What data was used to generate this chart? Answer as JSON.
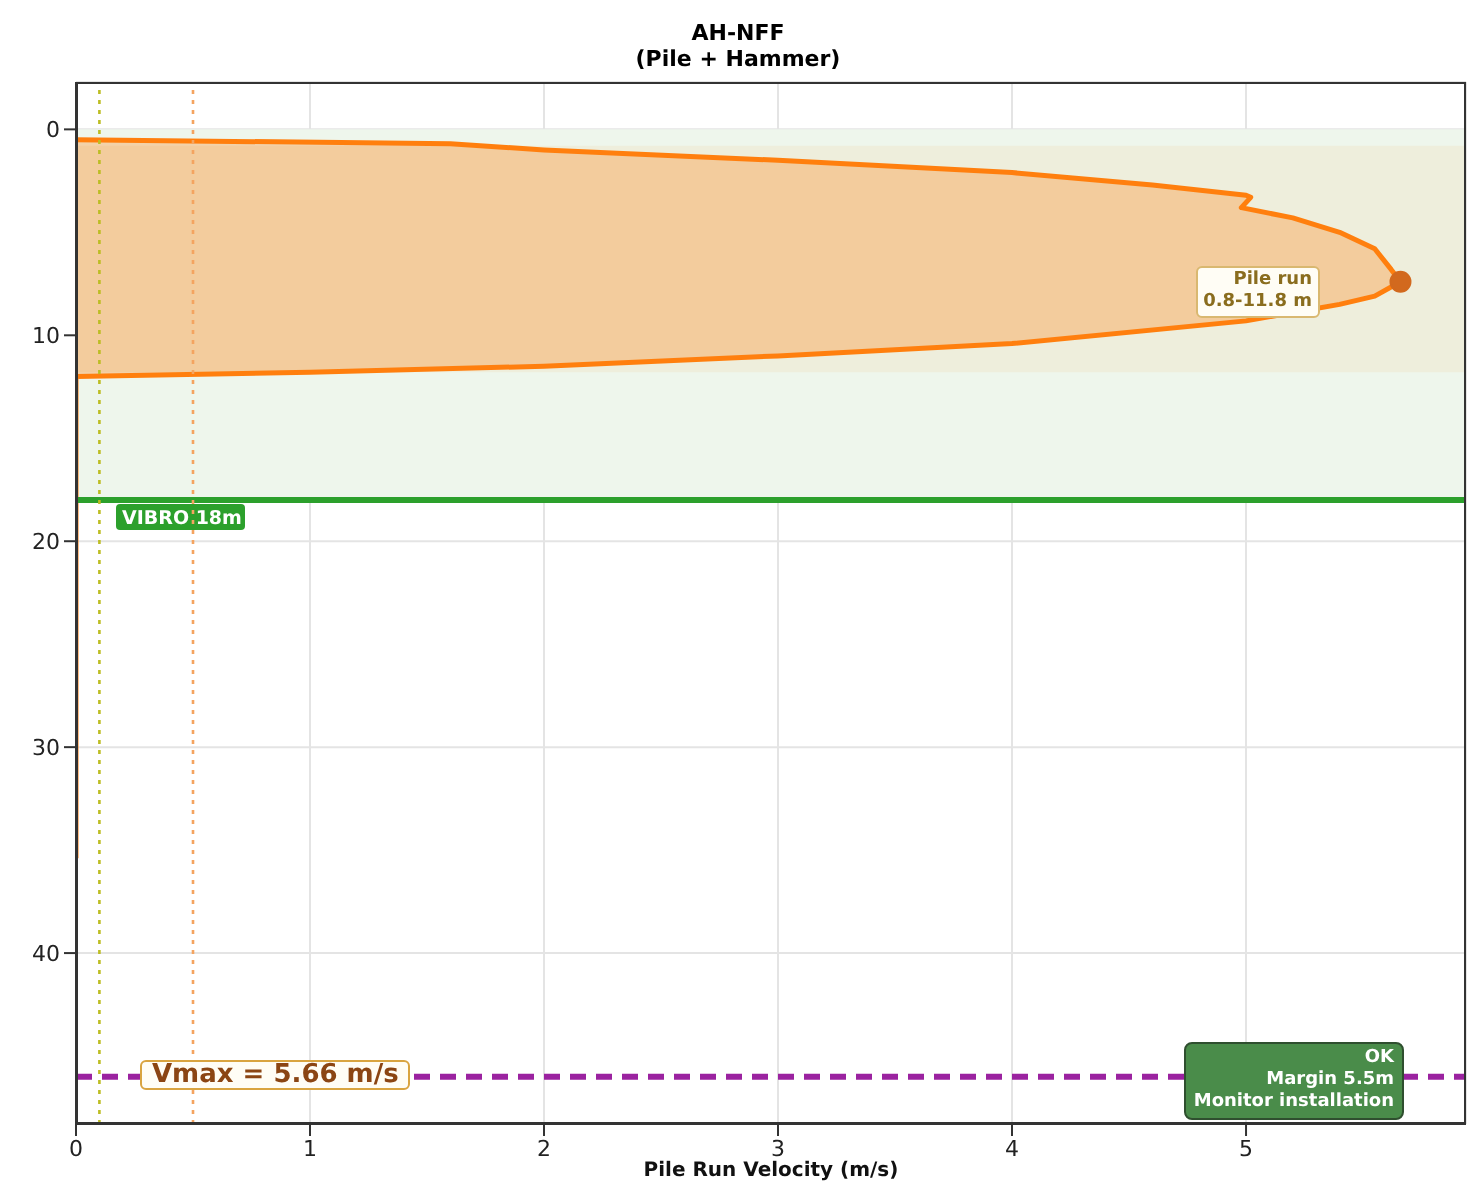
{
  "chart_data": {
    "type": "area",
    "title": "AH-NFF",
    "subtitle": "(Pile + Hammer)",
    "xlabel": "Pile Run Velocity (m/s)",
    "xlim": [
      0,
      5.94
    ],
    "xticks": [
      0,
      1,
      2,
      3,
      4,
      5
    ],
    "ylim": [
      48.3,
      -2.3
    ],
    "yticks": [
      0,
      10,
      20,
      30,
      40
    ],
    "grid": true,
    "series": [
      {
        "color": "#ff7f0e",
        "x": [
          0,
          1.6,
          2.0,
          3.0,
          4.0,
          4.6,
          5.0,
          5.02,
          4.98,
          5.2,
          5.4,
          5.55,
          5.62,
          5.66,
          5.55,
          5.4,
          5.0,
          4.0,
          3.0,
          2.0,
          1.0,
          0,
          0
        ],
        "values": [
          0.5,
          0.7,
          1.0,
          1.5,
          2.1,
          2.7,
          3.2,
          3.3,
          3.8,
          4.3,
          5.0,
          5.8,
          6.8,
          7.4,
          8.1,
          8.5,
          9.3,
          10.4,
          11.0,
          11.5,
          11.8,
          12.0,
          35.4
        ]
      },
      {
        "type": "scatter",
        "color": "#d2691e",
        "x": [
          5.66
        ],
        "values": [
          7.4
        ]
      }
    ],
    "bands": [
      {
        "axis": "y",
        "from": 0,
        "to": 18,
        "color": "#eef6ec"
      },
      {
        "axis": "y",
        "from": 0.8,
        "to": 11.8,
        "color": "#eeeedc"
      }
    ],
    "ref_lines": [
      {
        "axis": "y",
        "value": 18,
        "label": "VIBRO 18m",
        "color": "#2ca02c",
        "line_style": "solid"
      },
      {
        "axis": "y",
        "value": 46,
        "color": "#9b22a0",
        "line_style": "dashed"
      },
      {
        "axis": "x",
        "value": 0.1,
        "color": "#bcbd22",
        "line_style": "dotted"
      },
      {
        "axis": "x",
        "value": 0.5,
        "color": "#f4a460",
        "line_style": "dotted"
      }
    ],
    "annotations": [
      "Pile run\n0.8-11.8 m",
      "Vmax = 5.66 m/s",
      "OK\nMargin 5.5m\nMonitor installation"
    ]
  }
}
